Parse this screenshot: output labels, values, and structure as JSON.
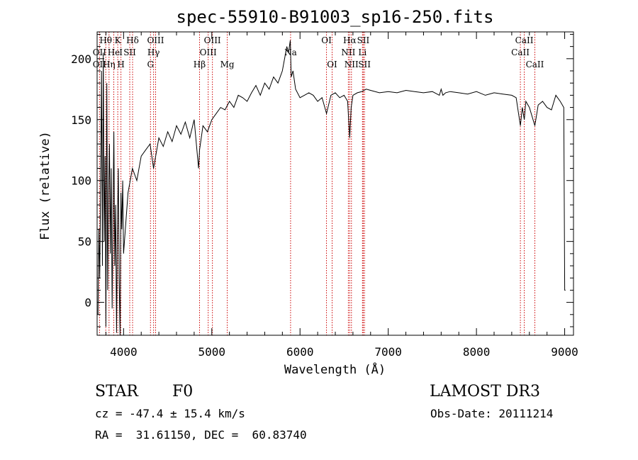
{
  "chart_data": {
    "type": "line",
    "title": "spec-55910-B91003_sp16-250.fits",
    "xlabel": "Wavelength (Å)",
    "ylabel": "Flux (relative)",
    "xlim": [
      3700,
      9100
    ],
    "ylim": [
      -27,
      222
    ],
    "xticks": [
      4000,
      5000,
      6000,
      7000,
      8000,
      9000
    ],
    "yticks": [
      0,
      50,
      100,
      150,
      200
    ],
    "grid": false,
    "series": [
      {
        "color": "#000000",
        "x": [
          3710,
          3720,
          3730,
          3740,
          3750,
          3760,
          3770,
          3780,
          3790,
          3800,
          3810,
          3820,
          3830,
          3840,
          3850,
          3860,
          3870,
          3880,
          3890,
          3900,
          3910,
          3920,
          3930,
          3940,
          3950,
          3960,
          3970,
          3980,
          3990,
          4000,
          4050,
          4100,
          4150,
          4200,
          4250,
          4300,
          4340,
          4400,
          4450,
          4500,
          4550,
          4600,
          4650,
          4700,
          4750,
          4800,
          4850,
          4861,
          4900,
          4950,
          5000,
          5050,
          5100,
          5150,
          5200,
          5250,
          5300,
          5350,
          5400,
          5450,
          5500,
          5550,
          5600,
          5650,
          5700,
          5750,
          5800,
          5850,
          5870,
          5890,
          5900,
          5920,
          5950,
          6000,
          6050,
          6100,
          6150,
          6200,
          6250,
          6300,
          6350,
          6400,
          6450,
          6500,
          6540,
          6563,
          6580,
          6600,
          6650,
          6700,
          6750,
          6800,
          6900,
          7000,
          7100,
          7200,
          7300,
          7400,
          7500,
          7580,
          7600,
          7620,
          7650,
          7700,
          7800,
          7900,
          8000,
          8100,
          8200,
          8300,
          8400,
          8450,
          8498,
          8520,
          8542,
          8560,
          8600,
          8662,
          8700,
          8750,
          8800,
          8850,
          8900,
          8950,
          8990,
          9000,
          9010
        ],
        "y": [
          -10,
          60,
          20,
          100,
          190,
          30,
          205,
          50,
          120,
          -20,
          180,
          10,
          90,
          130,
          40,
          110,
          -5,
          70,
          140,
          30,
          80,
          -25,
          60,
          110,
          20,
          -28,
          90,
          60,
          100,
          40,
          90,
          110,
          100,
          120,
          125,
          130,
          110,
          135,
          128,
          140,
          132,
          145,
          138,
          148,
          135,
          150,
          110,
          125,
          145,
          140,
          150,
          155,
          160,
          158,
          165,
          160,
          170,
          168,
          165,
          172,
          178,
          170,
          180,
          175,
          185,
          180,
          190,
          210,
          205,
          215,
          185,
          190,
          175,
          168,
          170,
          172,
          170,
          165,
          168,
          155,
          170,
          172,
          168,
          170,
          165,
          135,
          160,
          170,
          172,
          173,
          175,
          174,
          172,
          173,
          172,
          174,
          173,
          172,
          173,
          170,
          175,
          170,
          172,
          173,
          172,
          171,
          173,
          170,
          172,
          171,
          170,
          168,
          145,
          160,
          150,
          165,
          160,
          145,
          162,
          165,
          160,
          158,
          170,
          165,
          160,
          10,
          10
        ]
      }
    ],
    "line_labels": [
      {
        "text": "Hθ",
        "x": 3798,
        "row": 1,
        "line": true
      },
      {
        "text": "K",
        "x": 3934,
        "row": 1,
        "line": true
      },
      {
        "text": "Hδ",
        "x": 4102,
        "row": 1,
        "line": true
      },
      {
        "text": "OIII",
        "x": 4363,
        "row": 1,
        "line": true
      },
      {
        "text": "OIII",
        "x": 5007,
        "row": 1,
        "line": true
      },
      {
        "text": "OI",
        "x": 6300,
        "row": 1,
        "line": true
      },
      {
        "text": "Hα",
        "x": 6563,
        "row": 1,
        "line": true
      },
      {
        "text": "SII",
        "x": 6717,
        "row": 1,
        "line": true
      },
      {
        "text": "CaII",
        "x": 8542,
        "row": 1,
        "line": true
      },
      {
        "text": "OII",
        "x": 3727,
        "row": 2,
        "line": true
      },
      {
        "text": "He",
        "x": 3889,
        "row": 2,
        "line": true
      },
      {
        "text": "I",
        "x": 3970,
        "row": 2,
        "line": false
      },
      {
        "text": "SII",
        "x": 4070,
        "row": 2,
        "line": true
      },
      {
        "text": "Hγ",
        "x": 4340,
        "row": 2,
        "line": true
      },
      {
        "text": "OIII",
        "x": 4959,
        "row": 2,
        "line": true
      },
      {
        "text": "Na",
        "x": 5893,
        "row": 2,
        "line": true
      },
      {
        "text": "NII",
        "x": 6548,
        "row": 2,
        "line": true
      },
      {
        "text": "Li",
        "x": 6708,
        "row": 2,
        "line": true
      },
      {
        "text": "CaII",
        "x": 8498,
        "row": 2,
        "line": true
      },
      {
        "text": "OII",
        "x": 3727,
        "row": 3,
        "line": false
      },
      {
        "text": "Hη",
        "x": 3835,
        "row": 3,
        "line": true
      },
      {
        "text": "H",
        "x": 3970,
        "row": 3,
        "line": true
      },
      {
        "text": "G",
        "x": 4305,
        "row": 3,
        "line": true
      },
      {
        "text": "Hβ",
        "x": 4861,
        "row": 3,
        "line": true
      },
      {
        "text": "Mg",
        "x": 5175,
        "row": 3,
        "line": true
      },
      {
        "text": "OI",
        "x": 6364,
        "row": 3,
        "line": true
      },
      {
        "text": "NII",
        "x": 6583,
        "row": 3,
        "line": true
      },
      {
        "text": "SII",
        "x": 6731,
        "row": 3,
        "line": true
      },
      {
        "text": "CaII",
        "x": 8662,
        "row": 3,
        "line": true
      }
    ],
    "line_color": "#cc0000"
  },
  "info": {
    "object_class": "STAR",
    "subclass": "F0",
    "survey": "LAMOST DR3",
    "redshift": "cz = -47.4 ± 15.4 km/s",
    "obs_date": "Obs-Date: 20111214",
    "coords": "RA =  31.61150, DEC =  60.83740"
  }
}
